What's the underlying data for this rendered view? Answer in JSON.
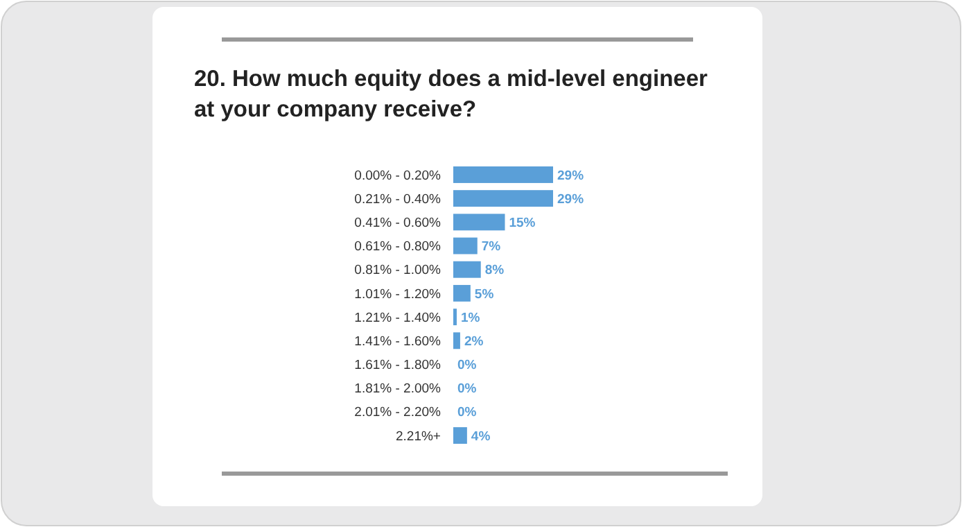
{
  "chart_data": {
    "type": "bar",
    "orientation": "horizontal",
    "title": "20. How much equity does a mid-level engineer at your company receive?",
    "categories": [
      "0.00% - 0.20%",
      "0.21% - 0.40%",
      "0.41% - 0.60%",
      "0.61% - 0.80%",
      "0.81% - 1.00%",
      "1.01% - 1.20%",
      "1.21% - 1.40%",
      "1.41% - 1.60%",
      "1.61% - 1.80%",
      "1.81% - 2.00%",
      "2.01% - 2.20%",
      "2.21%+"
    ],
    "values": [
      29,
      29,
      15,
      7,
      8,
      5,
      1,
      2,
      0,
      0,
      0,
      4
    ],
    "value_labels": [
      "29%",
      "29%",
      "15%",
      "7%",
      "8%",
      "5%",
      "1%",
      "2%",
      "0%",
      "0%",
      "0%",
      "4%"
    ],
    "color": "#5a9fd8"
  }
}
